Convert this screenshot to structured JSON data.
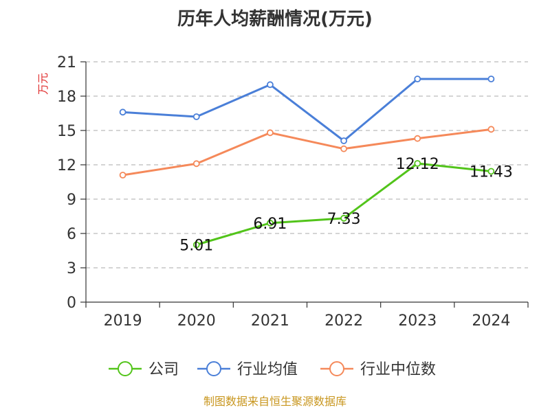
{
  "chart_data": {
    "type": "line",
    "title": "历年人均薪酬情况(万元)",
    "ylabel": "万元",
    "xlabel": "",
    "categories": [
      "2019",
      "2020",
      "2021",
      "2022",
      "2023",
      "2024"
    ],
    "ylim": [
      0,
      21
    ],
    "yticks": [
      0,
      3,
      6,
      9,
      12,
      15,
      18,
      21
    ],
    "grid": true,
    "legend_position": "bottom",
    "series": [
      {
        "name": "公司",
        "color": "#52c41a",
        "values": [
          null,
          5.01,
          6.91,
          7.33,
          12.12,
          11.43
        ],
        "labels": [
          null,
          "5.01",
          "6.91",
          "7.33",
          "12.12",
          "11.43"
        ]
      },
      {
        "name": "行业均值",
        "color": "#4a7fd8",
        "values": [
          16.6,
          16.2,
          19.0,
          14.1,
          19.5,
          19.5
        ]
      },
      {
        "name": "行业中位数",
        "color": "#f5895a",
        "values": [
          11.1,
          12.1,
          14.8,
          13.4,
          14.3,
          15.1
        ]
      }
    ]
  },
  "source": "制图数据来自恒生聚源数据库"
}
